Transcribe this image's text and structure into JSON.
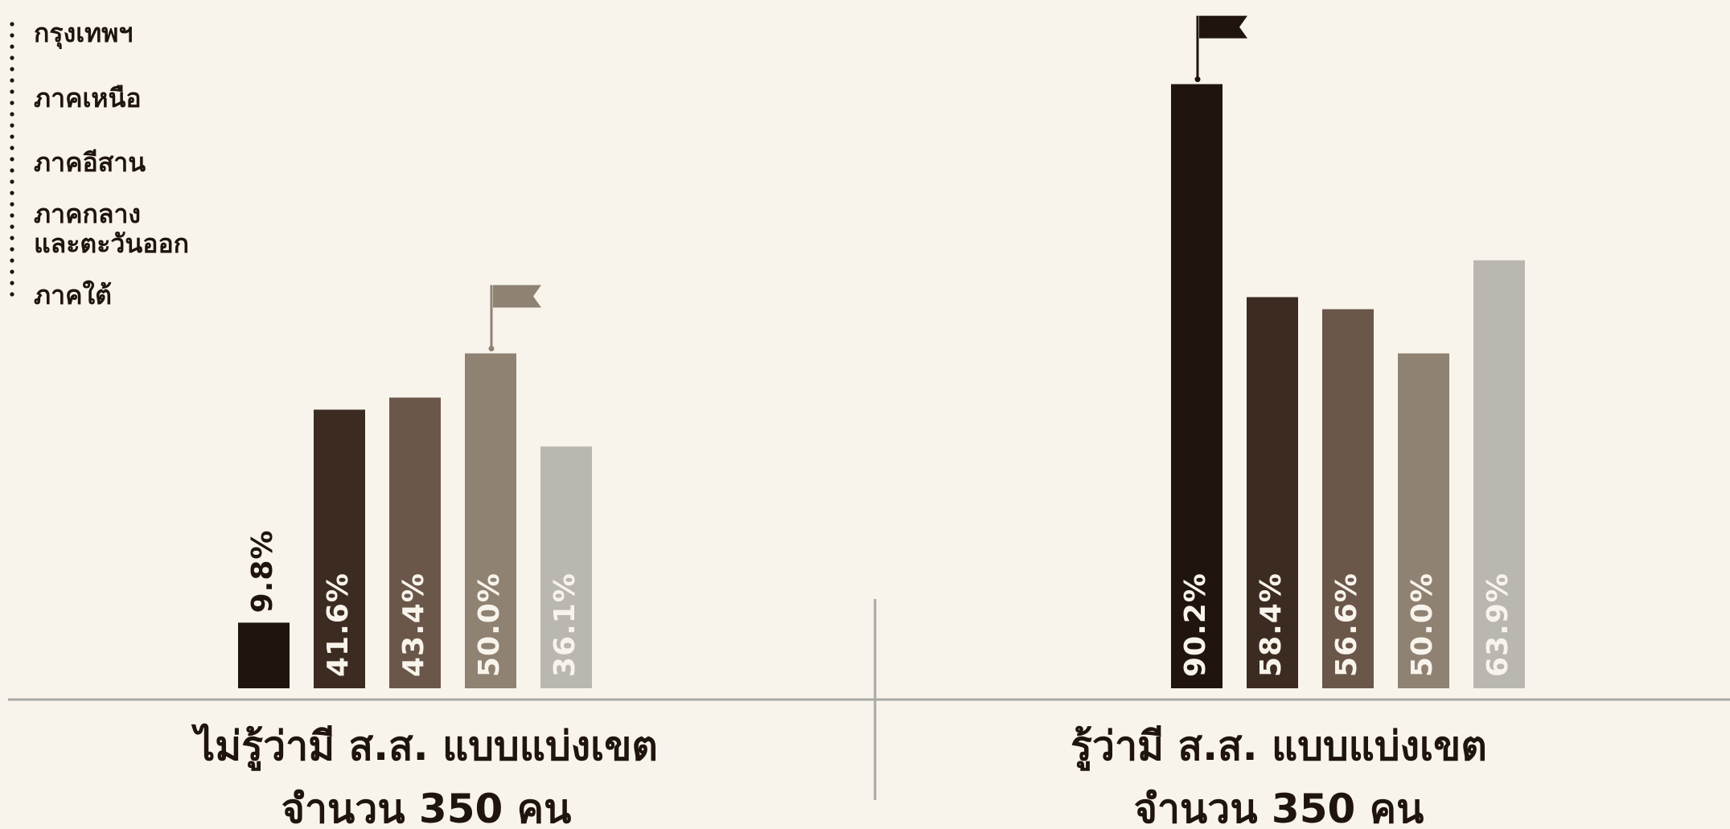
{
  "chart_data": {
    "type": "bar",
    "categories": [
      "กรุงเทพฯ",
      "ภาคเหนือ",
      "ภาคอีสาน",
      "ภาคกลางและตะวันออก",
      "ภาคใต้"
    ],
    "legend": {
      "placement": "top-left",
      "entries": [
        {
          "lines": [
            "กรุงเทพฯ"
          ]
        },
        {
          "lines": [
            "ภาคเหนือ"
          ]
        },
        {
          "lines": [
            "ภาคอีสาน"
          ]
        },
        {
          "lines": [
            "ภาคกลาง",
            "และตะวันออก"
          ]
        },
        {
          "lines": [
            "ภาคใต้"
          ]
        }
      ]
    },
    "colors": [
      "#1f150d",
      "#3c2b20",
      "#6a574a",
      "#8f8272",
      "#b9b7b0"
    ],
    "groups": [
      {
        "title_line1": "ไม่รู้ว่ามี  ส.ส. แบบแบ่งเขต",
        "title_line2": "จำนวน  350  คน",
        "values": [
          9.8,
          41.6,
          43.4,
          50.0,
          36.1
        ],
        "labels": [
          "9.8%",
          "41.6%",
          "43.4%",
          "50.0%",
          "36.1%"
        ],
        "flag_index": 3
      },
      {
        "title_line1": "รู้ว่ามี  ส.ส. แบบแบ่งเขต",
        "title_line2": "จำนวน  350  คน",
        "values": [
          90.2,
          58.4,
          56.6,
          50.0,
          63.9
        ],
        "labels": [
          "90.2%",
          "58.4%",
          "56.6%",
          "50.0%",
          "63.9%"
        ],
        "flag_index": 0
      }
    ],
    "ylim": [
      0,
      100
    ],
    "grid": false,
    "divider_color": "#a8a8a4",
    "flag_colors": [
      "#8f8272",
      "#1f150d"
    ]
  }
}
